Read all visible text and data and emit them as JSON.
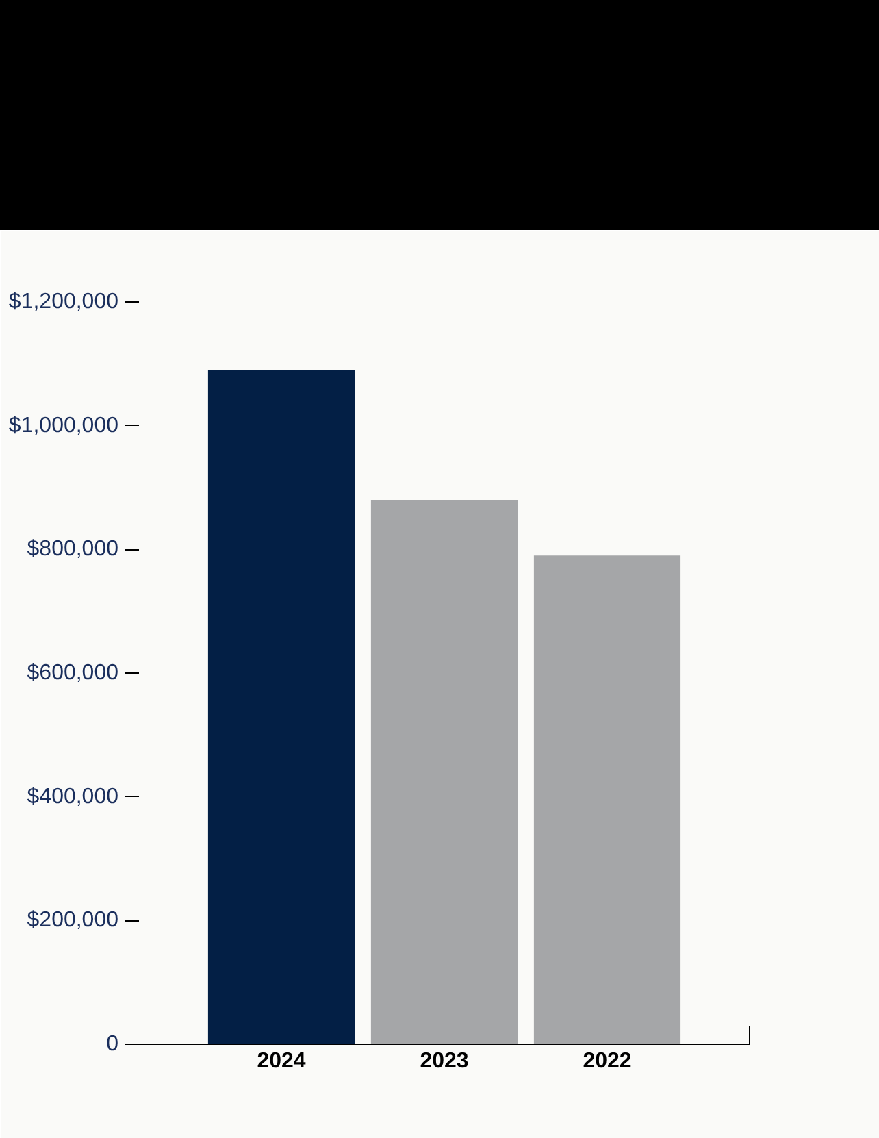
{
  "chart_data": {
    "type": "bar",
    "categories": [
      "2024",
      "2023",
      "2022"
    ],
    "values": [
      1090000,
      880000,
      790000
    ],
    "colors": [
      "#031f45",
      "#a5a6a8",
      "#a5a6a8"
    ],
    "ylim": [
      0,
      1200000
    ],
    "yticks": [
      0,
      {
        "value": 200000,
        "label": "$200,000"
      },
      {
        "value": 400000,
        "label": "$400,000"
      },
      {
        "value": 600000,
        "label": "$600,000"
      },
      {
        "value": 800000,
        "label": "$800,000"
      },
      {
        "value": 1000000,
        "label": "$1,000,000"
      },
      {
        "value": 1200000,
        "label": "$1,200,000"
      }
    ],
    "grid": false
  }
}
